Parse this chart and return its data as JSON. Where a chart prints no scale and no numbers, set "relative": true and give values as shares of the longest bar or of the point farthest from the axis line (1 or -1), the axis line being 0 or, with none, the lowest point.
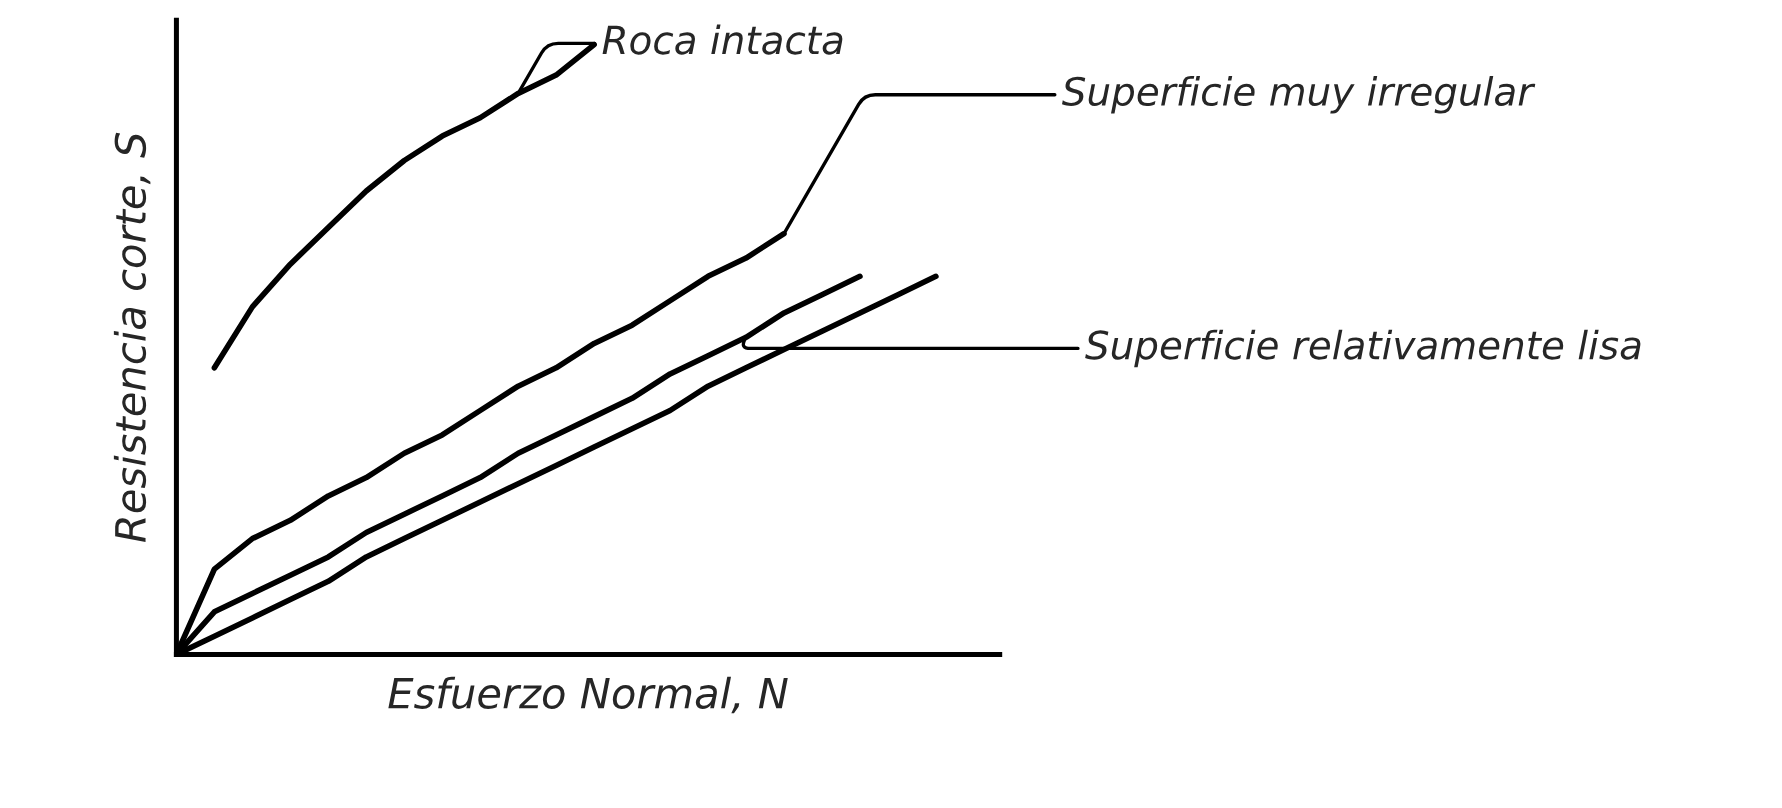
{
  "chart_data": {
    "type": "line",
    "relative": true,
    "xlabel": "Esfuerzo Normal, N",
    "ylabel": "Resistencia corte, S",
    "categories": [
      null,
      null,
      null,
      null,
      null,
      null,
      null,
      null,
      null,
      null,
      null,
      null,
      null,
      null,
      null,
      null,
      null,
      null,
      null,
      null,
      null
    ],
    "series": [
      {
        "color": "#000000",
        "values": [
          null,
          0.47,
          0.57,
          0.64,
          0.7,
          0.76,
          0.81,
          0.85,
          0.88,
          0.92,
          0.95,
          1.0,
          null,
          null,
          null,
          null,
          null,
          null,
          null,
          null,
          null
        ]
      },
      {
        "color": "#000000",
        "values": [
          0,
          0.14,
          0.19,
          0.22,
          0.26,
          0.29,
          0.33,
          0.36,
          0.4,
          0.44,
          0.47,
          0.51,
          0.54,
          0.58,
          0.62,
          0.65,
          0.69,
          null,
          null,
          null,
          null
        ]
      },
      {
        "color": "#000000",
        "values": [
          0,
          0.07,
          0.1,
          0.13,
          0.16,
          0.2,
          0.23,
          0.26,
          0.29,
          0.33,
          0.36,
          0.39,
          0.42,
          0.46,
          0.49,
          0.52,
          0.56,
          0.59,
          0.62,
          null,
          null
        ]
      },
      {
        "color": "#000000",
        "values": [
          0,
          0.03,
          0.06,
          0.09,
          0.12,
          0.16,
          0.19,
          0.22,
          0.25,
          0.28,
          0.31,
          0.34,
          0.37,
          0.4,
          0.44,
          0.47,
          0.5,
          0.53,
          0.56,
          0.59,
          0.62
        ]
      }
    ],
    "annotations": [
      "Roca intacta",
      "Superficie muy irregular",
      "Superficie relativamente lisa"
    ]
  }
}
